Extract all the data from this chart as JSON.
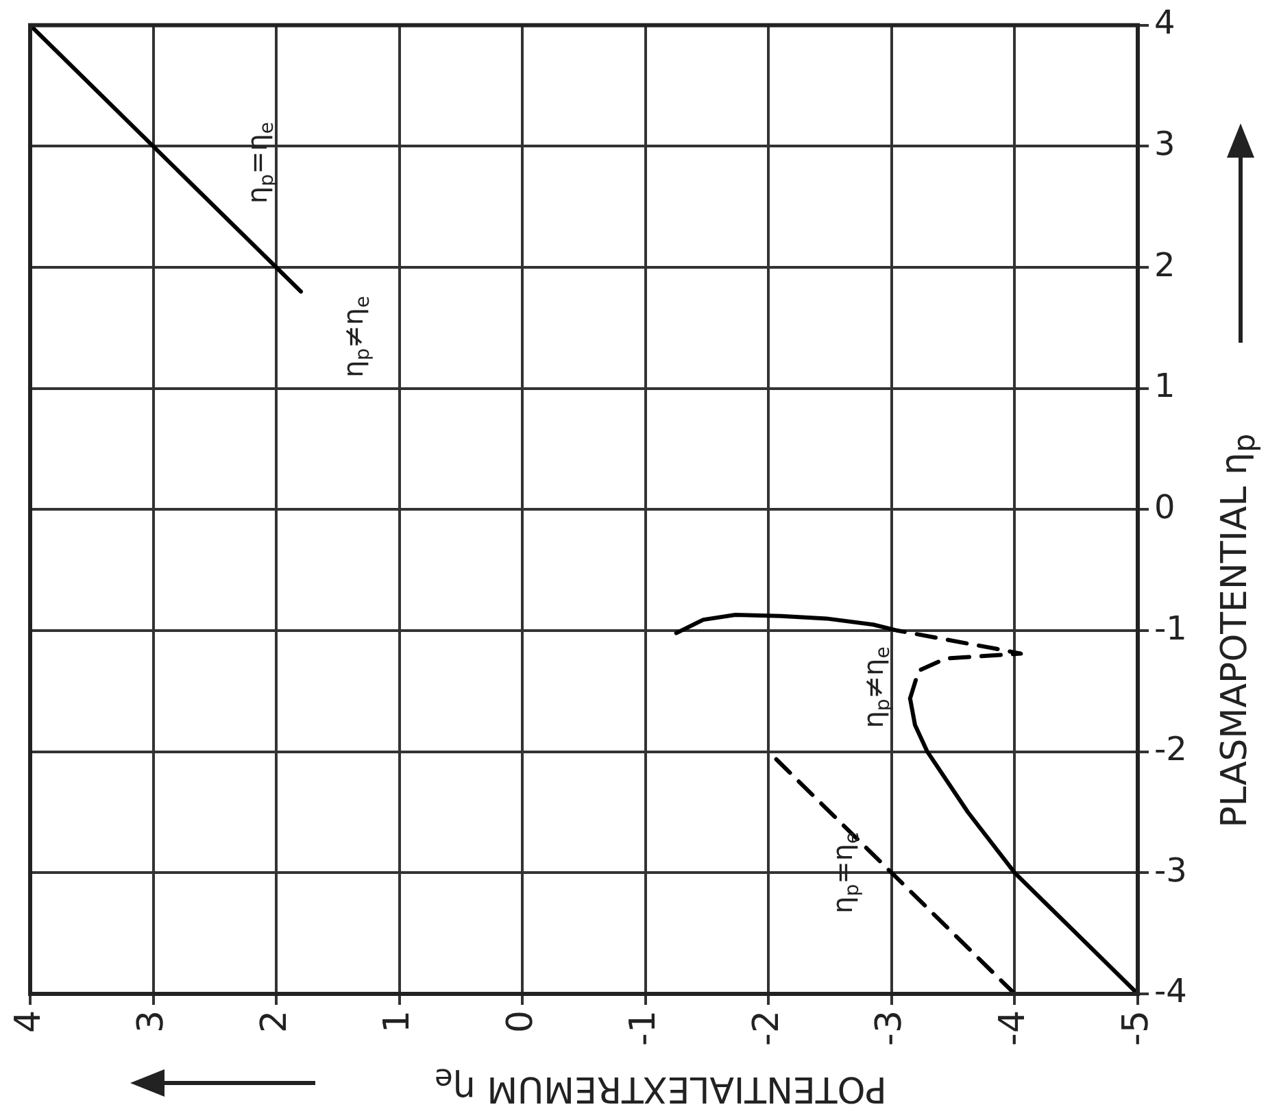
{
  "chart_data": {
    "type": "line",
    "xlabel": "POTENTIALEXTREMUM η$_{e}$",
    "ylabel": "PLASMAPOTENTIAL η$_{p}$",
    "xlim": [
      4,
      -5
    ],
    "ylim": [
      -4,
      4
    ],
    "xticks": [
      4,
      3,
      2,
      1,
      0,
      -1,
      -2,
      -3,
      -4,
      -5
    ],
    "yticks": [
      -4,
      -3,
      -2,
      -1,
      0,
      1,
      2,
      3,
      4
    ],
    "grid": true,
    "marker": "none",
    "series": [
      {
        "color": "#000000",
        "line_style": "solid",
        "x": [
          1.8,
          4
        ],
        "values": [
          1.8,
          4
        ]
      },
      {
        "color": "#000000",
        "line_style": "dashed",
        "x": [
          -4,
          -2
        ],
        "values": [
          -4,
          -2
        ]
      },
      {
        "color": "#000000",
        "line_style": "solid",
        "x": [
          -5,
          -4.5,
          -4,
          -3.62,
          -3.29,
          -3.19,
          -3.15
        ],
        "values": [
          -4,
          -3.5,
          -3,
          -2.5,
          -2,
          -1.78,
          -1.56
        ]
      },
      {
        "color": "#000000",
        "line_style": "dashed",
        "x": [
          -3.15,
          -3.22,
          -3.44,
          -4.05,
          -3.85,
          -3.05
        ],
        "values": [
          -1.56,
          -1.33,
          -1.23,
          -1.19,
          -1.15,
          -1
        ]
      },
      {
        "color": "#000000",
        "line_style": "solid",
        "x": [
          -3.05,
          -2.85,
          -2.47,
          -2.1,
          -1.73,
          -1.47,
          -1.25
        ],
        "values": [
          -1,
          -0.95,
          -0.9,
          -0.88,
          -0.87,
          -0.91,
          -1.02
        ]
      }
    ],
    "annotations": [
      {
        "text": "η$_{p}$=η$_{e}$",
        "x": 2.75,
        "y": 2.75
      },
      {
        "text": "η$_{p}$≠η$_{e}$",
        "x": 1.8,
        "y": 1.8
      },
      {
        "text": "η$_{p}$≠η$_{e}$",
        "x": -3.15,
        "y": -1.56
      },
      {
        "text": "η$_{p}$=η$_{e}$",
        "x": -3,
        "y": -3
      }
    ]
  }
}
